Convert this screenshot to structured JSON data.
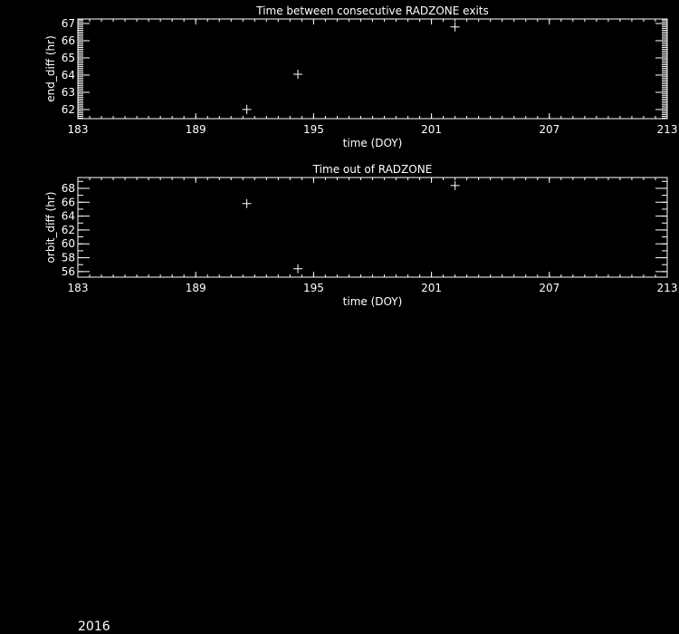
{
  "chart_data": [
    {
      "type": "scatter",
      "title": "Time between consecutive RADZONE exits",
      "xlabel": "time (DOY)",
      "ylabel": "end_diff (hr)",
      "xlim": [
        183,
        213
      ],
      "ylim": [
        61.47,
        67.26
      ],
      "x_ticks": [
        183,
        189,
        195,
        201,
        207,
        213
      ],
      "y_ticks": [
        62,
        63,
        64,
        65,
        66,
        67
      ],
      "x_minor_step": 0.6,
      "y_minor_step": 0.1,
      "marker": "plus",
      "points": [
        {
          "x": 191.6,
          "y": 62.0
        },
        {
          "x": 194.2,
          "y": 64.05
        },
        {
          "x": 202.2,
          "y": 66.8
        }
      ]
    },
    {
      "type": "scatter",
      "title": "Time out of RADZONE",
      "xlabel": "time (DOY)",
      "ylabel": "orbit_diff (hr)",
      "xlim": [
        183,
        213
      ],
      "ylim": [
        55.2,
        69.56
      ],
      "x_ticks": [
        183,
        189,
        195,
        201,
        207,
        213
      ],
      "y_ticks": [
        56,
        58,
        60,
        62,
        64,
        66,
        68
      ],
      "x_minor_step": 0.6,
      "y_minor_step": 1,
      "marker": "plus",
      "points": [
        {
          "x": 191.6,
          "y": 65.8
        },
        {
          "x": 194.2,
          "y": 56.4
        },
        {
          "x": 202.2,
          "y": 68.4
        }
      ]
    }
  ],
  "footer": {
    "year": "2016"
  },
  "colors": {
    "background": "#000000",
    "foreground": "#ffffff"
  }
}
